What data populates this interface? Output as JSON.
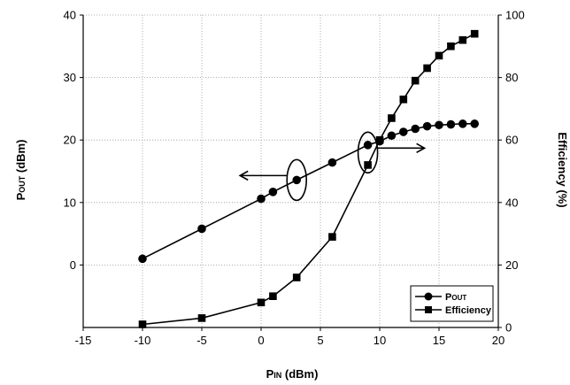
{
  "chart_data": {
    "type": "line",
    "xlabel_main": "P",
    "xlabel_sub": "IN",
    "xlabel_unit": " (dBm)",
    "ylabel_main": "P",
    "ylabel_sub": "OUT",
    "ylabel_unit": " (dBm)",
    "y2label": "Efficiency (%)",
    "xlim": [
      -15,
      20
    ],
    "ylim": [
      -10,
      40
    ],
    "y2lim": [
      0,
      100
    ],
    "xticks": [
      "-15",
      "-10",
      "-5",
      "0",
      "5",
      "10",
      "15",
      "20"
    ],
    "yticks": [
      "0",
      "10",
      "20",
      "30",
      "40"
    ],
    "y2ticks": [
      "0",
      "20",
      "40",
      "60",
      "80",
      "100"
    ],
    "grid": "dotted",
    "legend_position": "bottom-right",
    "series": [
      {
        "name": "POUT",
        "name_main": "P",
        "name_sub": "OUT",
        "axis": "left",
        "marker": "circle",
        "x": [
          -10,
          -5,
          0,
          1,
          3,
          6,
          9,
          10,
          11,
          12,
          13,
          14,
          15,
          16,
          17,
          18
        ],
        "y": [
          1.0,
          5.8,
          10.6,
          11.7,
          13.6,
          16.4,
          19.2,
          19.8,
          20.7,
          21.3,
          21.8,
          22.2,
          22.4,
          22.5,
          22.6,
          22.6
        ]
      },
      {
        "name": "Efficiency",
        "axis": "right",
        "marker": "square",
        "x": [
          -10,
          -5,
          0,
          1,
          3,
          6,
          9,
          10,
          11,
          12,
          13,
          14,
          15,
          16,
          17,
          18
        ],
        "y": [
          1,
          3,
          8,
          10,
          16,
          29,
          52,
          60,
          67,
          73,
          79,
          83,
          87,
          90,
          92,
          94
        ]
      }
    ],
    "annotations": [
      {
        "type": "ellipse-arrow",
        "target": "left",
        "x": 3,
        "y": 13.6
      },
      {
        "type": "ellipse-arrow",
        "target": "right",
        "x": 9,
        "y": 56
      }
    ]
  }
}
